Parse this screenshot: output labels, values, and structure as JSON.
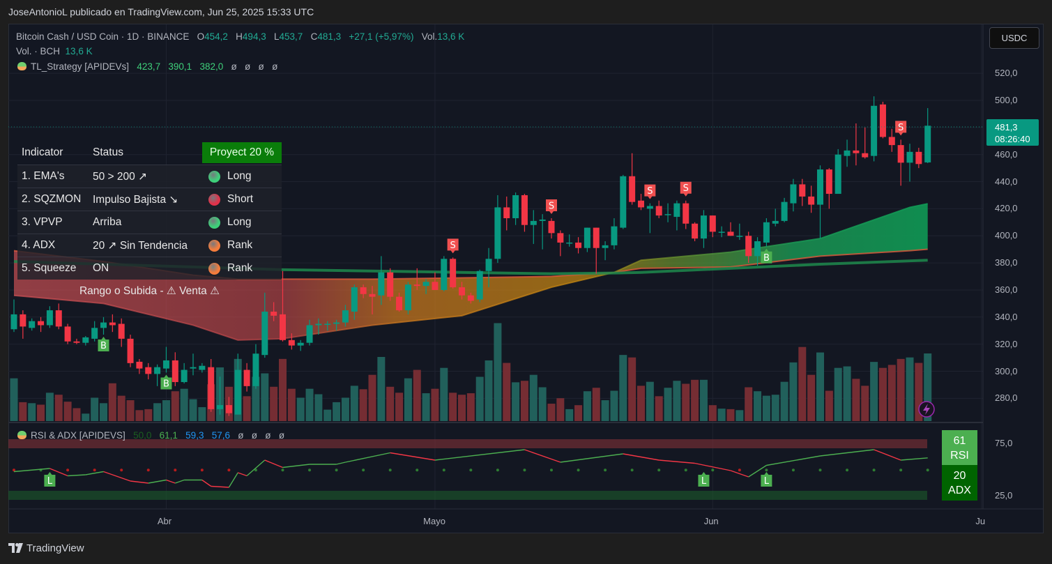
{
  "header": {
    "published": "JoseAntonioL publicado en TradingView.com, Jun 25, 2025 15:33 UTC"
  },
  "legend": {
    "symbol": "Bitcoin Cash / USD Coin · 1D · BINANCE",
    "o_label": "O",
    "o": "454,2",
    "h_label": "H",
    "h": "494,3",
    "l_label": "L",
    "l": "453,7",
    "c_label": "C",
    "c": "481,3",
    "change": "+27,1 (+5,97%)",
    "vol_label": "Vol.",
    "vol": "13,6 K",
    "vol2_label": "Vol. · BCH",
    "vol2": "13,6 K",
    "strategy_name": "TL_Strategy [APIDEVs]",
    "strategy_values": [
      "423,7",
      "390,1",
      "382,0"
    ],
    "strategy_empty": [
      "ø",
      "ø",
      "ø",
      "ø"
    ]
  },
  "currency_button": "USDC",
  "last_price": {
    "price": "481,3",
    "countdown": "08:26:40"
  },
  "price_ticks": [
    "520,0",
    "500,0",
    "460,0",
    "440,0",
    "420,0",
    "400,0",
    "380,0",
    "360,0",
    "340,0",
    "320,0",
    "300,0",
    "280,0"
  ],
  "table": {
    "headers": [
      "Indicator",
      "Status",
      "Proyect 20 %"
    ],
    "rows": [
      {
        "indicator": "1. EMA's",
        "status": "50 > 200 ↗",
        "signal": "Long",
        "color": "#3ecf7a"
      },
      {
        "indicator": "2. SQZMON",
        "status": "Impulso Bajista ↘",
        "signal": "Short",
        "color": "#e0324a"
      },
      {
        "indicator": "3. VPVP",
        "status": "Arriba",
        "signal": "Long",
        "color": "#3ecf7a"
      },
      {
        "indicator": "4. ADX",
        "status": "20 ↗ Sin Tendencia",
        "signal": "Rank",
        "color": "#f47c3c"
      },
      {
        "indicator": "5. Squeeze",
        "status": "ON",
        "signal": "Rank",
        "color": "#f47c3c"
      }
    ],
    "footer": "Rango o Subida -  ⚠  Venta  ⚠"
  },
  "rsi_pane": {
    "name": "RSI & ADX [APIDEVS]",
    "values": [
      "50,0",
      "61,1",
      "59,3",
      "57,6"
    ],
    "empty": [
      "ø",
      "ø",
      "ø",
      "ø"
    ],
    "rsi_badge": {
      "value": "61",
      "label": "RSI"
    },
    "adx_badge": {
      "value": "20",
      "label": "ADX"
    },
    "ticks": [
      "75,0",
      "25,0"
    ]
  },
  "time_ticks": [
    {
      "label": "Abr",
      "date": "2025-04-01"
    },
    {
      "label": "Mayo",
      "date": "2025-05-01"
    },
    {
      "label": "Jun",
      "date": "2025-06-01"
    },
    {
      "label": "Ju",
      "date": "2025-07-01"
    }
  ],
  "footer": {
    "brand": "TradingView"
  },
  "icons": {
    "logo": "tradingview-logo-icon",
    "alert": "lightning-icon",
    "strategy": "frog-icon",
    "warning": "warning-icon"
  },
  "colors": {
    "up": "#089981",
    "down": "#f23645",
    "vol_up": "#22645f",
    "vol_down": "#7a2e35",
    "proyect": "#0a7d0a",
    "rsi_line_up": "#4caf50",
    "rsi_line_down": "#f23645"
  },
  "chart_data": {
    "type": "candlestick",
    "interval": "1D",
    "first_date": "2025-03-15",
    "ylim": [
      265,
      530
    ],
    "ohlc": [
      [
        331,
        353,
        329,
        342
      ],
      [
        342,
        345,
        324,
        333
      ],
      [
        332,
        339,
        330,
        337
      ],
      [
        337,
        340,
        329,
        334
      ],
      [
        334,
        348,
        332,
        345
      ],
      [
        345,
        350,
        331,
        333
      ],
      [
        333,
        335,
        320,
        322
      ],
      [
        322,
        324,
        320,
        321
      ],
      [
        321,
        326,
        319,
        325
      ],
      [
        324,
        337,
        322,
        332
      ],
      [
        332,
        340,
        327,
        336
      ],
      [
        336,
        342,
        329,
        334
      ],
      [
        335,
        339,
        318,
        324
      ],
      [
        324,
        327,
        303,
        306
      ],
      [
        307,
        309,
        298,
        302
      ],
      [
        303,
        306,
        294,
        298
      ],
      [
        298,
        305,
        289,
        303
      ],
      [
        302,
        318,
        299,
        308
      ],
      [
        308,
        314,
        289,
        292
      ],
      [
        292,
        306,
        291,
        301
      ],
      [
        302,
        313,
        297,
        303
      ],
      [
        301,
        306,
        299,
        304
      ],
      [
        303,
        309,
        270,
        272
      ],
      [
        272,
        296,
        268,
        275
      ],
      [
        275,
        281,
        267,
        269
      ],
      [
        268,
        313,
        268,
        301
      ],
      [
        301,
        306,
        285,
        289
      ],
      [
        289,
        320,
        287,
        313
      ],
      [
        312,
        358,
        310,
        344
      ],
      [
        344,
        351,
        337,
        341
      ],
      [
        342,
        374,
        322,
        323
      ],
      [
        323,
        328,
        316,
        319
      ],
      [
        319,
        323,
        315,
        321
      ],
      [
        321,
        338,
        319,
        334
      ],
      [
        334,
        339,
        327,
        335
      ],
      [
        335,
        337,
        330,
        335
      ],
      [
        335,
        338,
        330,
        336
      ],
      [
        336,
        349,
        333,
        345
      ],
      [
        344,
        364,
        338,
        362
      ],
      [
        362,
        364,
        354,
        357
      ],
      [
        357,
        363,
        342,
        355
      ],
      [
        356,
        385,
        349,
        373
      ],
      [
        373,
        376,
        352,
        355
      ],
      [
        355,
        358,
        344,
        345
      ],
      [
        345,
        366,
        342,
        364
      ],
      [
        364,
        376,
        360,
        363
      ],
      [
        363,
        368,
        357,
        366
      ],
      [
        366,
        373,
        361,
        360
      ],
      [
        360,
        385,
        359,
        383
      ],
      [
        383,
        384,
        361,
        362
      ],
      [
        362,
        366,
        353,
        356
      ],
      [
        356,
        358,
        350,
        352
      ],
      [
        353,
        375,
        351,
        374
      ],
      [
        374,
        391,
        362,
        383
      ],
      [
        383,
        430,
        380,
        421
      ],
      [
        421,
        429,
        404,
        413
      ],
      [
        413,
        432,
        408,
        430
      ],
      [
        430,
        431,
        403,
        408
      ],
      [
        408,
        419,
        394,
        411
      ],
      [
        411,
        416,
        390,
        412
      ],
      [
        411,
        413,
        398,
        402
      ],
      [
        402,
        404,
        385,
        395
      ],
      [
        395,
        401,
        392,
        395
      ],
      [
        395,
        399,
        387,
        391
      ],
      [
        391,
        406,
        388,
        406
      ],
      [
        406,
        406,
        372,
        391
      ],
      [
        391,
        396,
        382,
        393
      ],
      [
        393,
        413,
        390,
        407
      ],
      [
        406,
        445,
        405,
        444
      ],
      [
        444,
        461,
        423,
        425
      ],
      [
        426,
        431,
        419,
        421
      ],
      [
        420,
        424,
        402,
        422
      ],
      [
        422,
        426,
        413,
        415
      ],
      [
        416,
        424,
        410,
        416
      ],
      [
        414,
        426,
        404,
        424
      ],
      [
        424,
        426,
        405,
        409
      ],
      [
        409,
        410,
        396,
        398
      ],
      [
        398,
        419,
        391,
        415
      ],
      [
        415,
        415,
        399,
        403
      ],
      [
        403,
        407,
        399,
        403
      ],
      [
        403,
        410,
        400,
        400
      ],
      [
        400,
        409,
        397,
        400
      ],
      [
        400,
        403,
        380,
        385
      ],
      [
        385,
        399,
        378,
        396
      ],
      [
        395,
        413,
        392,
        410
      ],
      [
        409,
        420,
        407,
        411
      ],
      [
        411,
        428,
        410,
        425
      ],
      [
        424,
        442,
        418,
        438
      ],
      [
        438,
        442,
        422,
        429
      ],
      [
        429,
        437,
        417,
        423
      ],
      [
        423,
        452,
        398,
        449
      ],
      [
        449,
        450,
        420,
        431
      ],
      [
        431,
        464,
        431,
        460
      ],
      [
        459,
        471,
        451,
        463
      ],
      [
        463,
        483,
        452,
        461
      ],
      [
        461,
        480,
        457,
        458
      ],
      [
        459,
        503,
        455,
        496
      ],
      [
        497,
        499,
        472,
        473
      ],
      [
        473,
        479,
        462,
        467
      ],
      [
        467,
        471,
        437,
        454
      ],
      [
        454,
        468,
        440,
        462
      ],
      [
        462,
        465,
        450,
        453
      ],
      [
        454.2,
        494.3,
        453.7,
        481.3
      ]
    ],
    "volume_k": [
      8.6,
      3.8,
      3.6,
      3.3,
      5.7,
      5.3,
      3.9,
      2.6,
      1.5,
      4.7,
      3.6,
      7.6,
      5.1,
      4.2,
      2.2,
      2.4,
      3.6,
      4.2,
      6.0,
      6.5,
      4.4,
      2.8,
      7.4,
      10.8,
      6.9,
      12.5,
      5.0,
      8.9,
      9.6,
      6.9,
      12.5,
      6.5,
      4.7,
      6.5,
      5.4,
      2.3,
      3.8,
      4.7,
      7.1,
      6.4,
      9.3,
      12.9,
      6.9,
      5.7,
      8.6,
      10.3,
      5.6,
      6.5,
      10.7,
      5.7,
      5.3,
      5.6,
      8.9,
      12.2,
      19.7,
      11.7,
      7.8,
      8.1,
      9.3,
      6.8,
      3.5,
      4.6,
      2.4,
      3.2,
      6.0,
      6.7,
      4.2,
      6.1,
      13.3,
      12.8,
      7.1,
      7.9,
      5.0,
      6.7,
      8.1,
      7.5,
      8.3,
      8.3,
      3.2,
      2.5,
      2.4,
      2.2,
      6.8,
      6.0,
      5.1,
      5.3,
      7.9,
      11.8,
      14.9,
      9.3,
      13.8,
      6.1,
      10.7,
      11.0,
      8.5,
      7.1,
      11.9,
      10.7,
      11.3,
      12.5,
      12.8,
      11.7,
      13.6
    ],
    "ema_ribbon": [
      {
        "date": "2025-03-15",
        "fast": 356,
        "mid": 389,
        "slow": 381
      },
      {
        "date": "2025-03-25",
        "fast": 350,
        "mid": 381,
        "slow": 379
      },
      {
        "date": "2025-04-04",
        "fast": 334,
        "mid": 371,
        "slow": 377
      },
      {
        "date": "2025-04-09",
        "fast": 323,
        "mid": 368,
        "slow": 376
      },
      {
        "date": "2025-04-14",
        "fast": 324,
        "mid": 368,
        "slow": 375
      },
      {
        "date": "2025-04-24",
        "fast": 334,
        "mid": 368,
        "slow": 374
      },
      {
        "date": "2025-05-04",
        "fast": 341,
        "mid": 369,
        "slow": 373
      },
      {
        "date": "2025-05-14",
        "fast": 362,
        "mid": 370,
        "slow": 372
      },
      {
        "date": "2025-05-21",
        "fast": 373,
        "mid": 373,
        "slow": 372.5
      },
      {
        "date": "2025-05-24",
        "fast": 382,
        "mid": 376,
        "slow": 373
      },
      {
        "date": "2025-06-03",
        "fast": 388,
        "mid": 377,
        "slow": 376
      },
      {
        "date": "2025-06-13",
        "fast": 398,
        "mid": 385,
        "slow": 379
      },
      {
        "date": "2025-06-23",
        "fast": 421,
        "mid": 389,
        "slow": 381.5
      },
      {
        "date": "2025-06-25",
        "fast": 423.7,
        "mid": 390.1,
        "slow": 382.0
      }
    ],
    "signals": [
      {
        "type": "B",
        "date": "2025-03-25"
      },
      {
        "type": "B",
        "date": "2025-04-01"
      },
      {
        "type": "S",
        "date": "2025-05-03"
      },
      {
        "type": "S",
        "date": "2025-05-14"
      },
      {
        "type": "S",
        "date": "2025-05-25"
      },
      {
        "type": "S",
        "date": "2025-05-29"
      },
      {
        "type": "B",
        "date": "2025-06-07"
      },
      {
        "type": "S",
        "date": "2025-06-22"
      }
    ],
    "rsi_signals": [
      {
        "type": "L",
        "date": "2025-03-19"
      },
      {
        "type": "L",
        "date": "2025-05-31"
      },
      {
        "type": "L",
        "date": "2025-06-07"
      }
    ],
    "rsi": {
      "ylim": [
        10,
        90
      ],
      "points": [
        [
          "2025-03-15",
          48
        ],
        [
          "2025-03-19",
          51
        ],
        [
          "2025-03-21",
          44
        ],
        [
          "2025-03-23",
          45
        ],
        [
          "2025-03-25",
          48
        ],
        [
          "2025-03-28",
          39
        ],
        [
          "2025-03-30",
          37
        ],
        [
          "2025-04-01",
          40
        ],
        [
          "2025-04-02",
          37
        ],
        [
          "2025-04-03",
          40
        ],
        [
          "2025-04-05",
          40
        ],
        [
          "2025-04-06",
          34
        ],
        [
          "2025-04-08",
          33
        ],
        [
          "2025-04-09",
          47
        ],
        [
          "2025-04-10",
          44
        ],
        [
          "2025-04-12",
          59
        ],
        [
          "2025-04-14",
          52
        ],
        [
          "2025-04-17",
          55
        ],
        [
          "2025-04-20",
          55
        ],
        [
          "2025-04-21",
          57
        ],
        [
          "2025-04-26",
          66
        ],
        [
          "2025-05-01",
          59
        ],
        [
          "2025-05-11",
          69
        ],
        [
          "2025-05-15",
          57
        ],
        [
          "2025-05-22",
          65
        ],
        [
          "2025-05-26",
          59
        ],
        [
          "2025-05-30",
          56
        ],
        [
          "2025-06-03",
          49
        ],
        [
          "2025-06-05",
          43
        ],
        [
          "2025-06-07",
          54
        ],
        [
          "2025-06-13",
          63
        ],
        [
          "2025-06-19",
          69
        ],
        [
          "2025-06-22",
          59
        ],
        [
          "2025-06-25",
          61.1
        ]
      ]
    }
  }
}
